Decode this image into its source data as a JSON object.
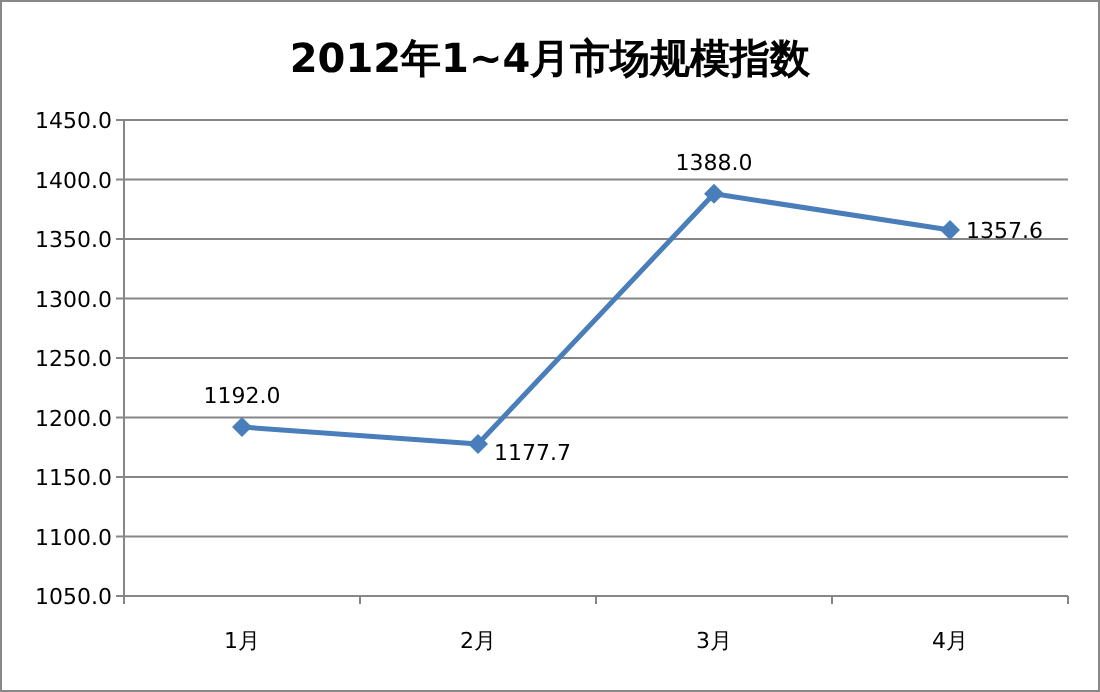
{
  "chart_data": {
    "type": "line",
    "title": "2012年1~4月市场规模指数",
    "categories": [
      "1月",
      "2月",
      "3月",
      "4月"
    ],
    "values": [
      1192.0,
      1177.7,
      1388.0,
      1357.6
    ],
    "value_labels": [
      "1192.0",
      "1177.7",
      "1388.0",
      "1357.6"
    ],
    "color": "#4a7ebb",
    "marker": "diamond",
    "grid": "y",
    "ylim": [
      1050,
      1450
    ],
    "yticks": [
      {
        "value": 1050,
        "label": "1050.0"
      },
      {
        "value": 1100,
        "label": "1100.0"
      },
      {
        "value": 1150,
        "label": "1150.0"
      },
      {
        "value": 1200,
        "label": "1200.0"
      },
      {
        "value": 1250,
        "label": "1250.0"
      },
      {
        "value": 1300,
        "label": "1300.0"
      },
      {
        "value": 1350,
        "label": "1350.0"
      },
      {
        "value": 1400,
        "label": "1400.0"
      },
      {
        "value": 1450,
        "label": "1450.0"
      }
    ]
  }
}
